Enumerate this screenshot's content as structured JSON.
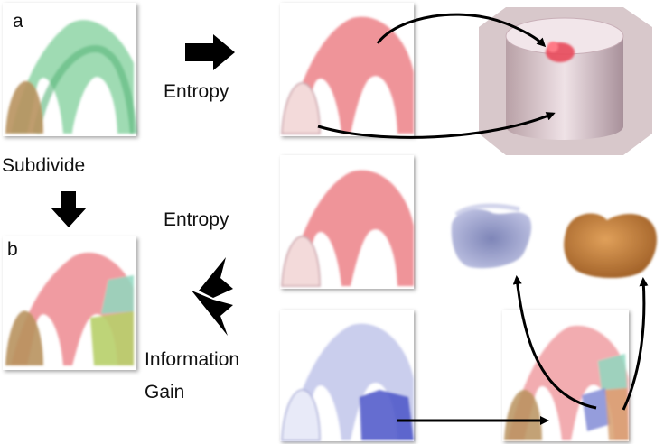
{
  "labels": {
    "panel_a": "a",
    "panel_b": "b",
    "subdivide": "Subdivide",
    "entropy_top": "Entropy",
    "entropy_mid": "Entropy",
    "info_gain_line1": "Information",
    "info_gain_line2": "Gain"
  },
  "colors": {
    "green": "#7fcf9a",
    "red": "#e8666e",
    "tan": "#b8925e",
    "blue": "#8a92d8",
    "yellow_green": "#b7cf6a",
    "teal": "#8fd8c0",
    "orange": "#c9803a",
    "arrow": "#000000"
  }
}
